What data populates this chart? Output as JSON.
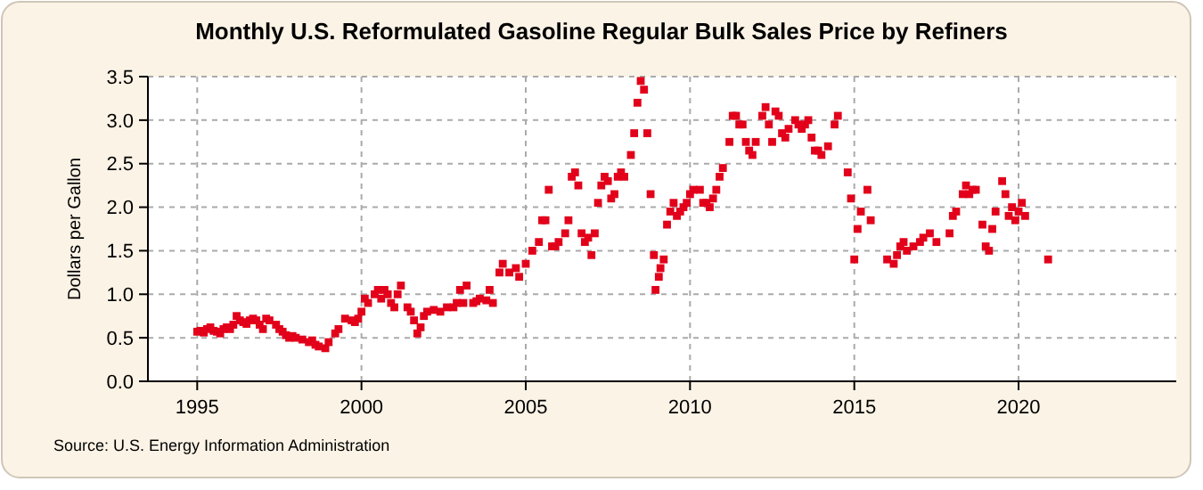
{
  "chart_data": {
    "type": "scatter",
    "title": "Monthly U.S. Reformulated Gasoline Regular Bulk Sales Price by Refiners",
    "ylabel": "Dollars per Gallon",
    "annotations": [
      "Source: U.S. Energy Information Administration"
    ],
    "x": [
      1995.0,
      1995.1,
      1995.2,
      1995.3,
      1995.4,
      1995.5,
      1995.6,
      1995.7,
      1995.8,
      1995.9,
      1996.0,
      1996.1,
      1996.2,
      1996.3,
      1996.4,
      1996.5,
      1996.6,
      1996.7,
      1996.8,
      1996.9,
      1997.0,
      1997.1,
      1997.2,
      1997.4,
      1997.5,
      1997.6,
      1997.7,
      1997.8,
      1997.9,
      1998.0,
      1998.2,
      1998.4,
      1998.5,
      1998.6,
      1998.7,
      1998.9,
      1999.0,
      1999.2,
      1999.3,
      1999.5,
      1999.7,
      1999.8,
      1999.9,
      2000.0,
      2000.1,
      2000.2,
      2000.4,
      2000.5,
      2000.6,
      2000.7,
      2000.8,
      2000.9,
      2001.0,
      2001.1,
      2001.2,
      2001.4,
      2001.5,
      2001.6,
      2001.7,
      2001.8,
      2001.9,
      2002.0,
      2002.2,
      2002.4,
      2002.6,
      2002.8,
      2002.9,
      2003.0,
      2003.1,
      2003.2,
      2003.4,
      2003.5,
      2003.6,
      2003.8,
      2003.9,
      2004.0,
      2004.2,
      2004.3,
      2004.5,
      2004.7,
      2004.8,
      2005.0,
      2005.2,
      2005.4,
      2005.5,
      2005.6,
      2005.7,
      2005.8,
      2005.9,
      2006.0,
      2006.2,
      2006.3,
      2006.4,
      2006.5,
      2006.6,
      2006.7,
      2006.8,
      2006.9,
      2007.0,
      2007.1,
      2007.2,
      2007.3,
      2007.4,
      2007.5,
      2007.6,
      2007.7,
      2007.8,
      2007.9,
      2008.0,
      2008.2,
      2008.3,
      2008.4,
      2008.5,
      2008.6,
      2008.7,
      2008.8,
      2008.9,
      2008.95,
      2009.05,
      2009.1,
      2009.2,
      2009.3,
      2009.4,
      2009.5,
      2009.6,
      2009.7,
      2009.8,
      2009.9,
      2010.0,
      2010.1,
      2010.3,
      2010.4,
      2010.5,
      2010.6,
      2010.7,
      2010.8,
      2010.9,
      2011.0,
      2011.2,
      2011.3,
      2011.4,
      2011.5,
      2011.6,
      2011.7,
      2011.8,
      2011.9,
      2012.0,
      2012.2,
      2012.3,
      2012.4,
      2012.5,
      2012.6,
      2012.7,
      2012.8,
      2012.9,
      2013.0,
      2013.2,
      2013.3,
      2013.4,
      2013.5,
      2013.6,
      2013.7,
      2013.8,
      2013.9,
      2014.0,
      2014.2,
      2014.4,
      2014.5,
      2014.8,
      2014.9,
      2015.0,
      2015.1,
      2015.2,
      2015.4,
      2015.5,
      2016.0,
      2016.2,
      2016.3,
      2016.4,
      2016.5,
      2016.6,
      2016.8,
      2017.0,
      2017.1,
      2017.3,
      2017.5,
      2017.9,
      2018.0,
      2018.1,
      2018.3,
      2018.4,
      2018.5,
      2018.6,
      2018.7,
      2018.9,
      2019.0,
      2019.1,
      2019.2,
      2019.3,
      2019.5,
      2019.6,
      2019.7,
      2019.8,
      2019.9,
      2020.0,
      2020.1,
      2020.2,
      2020.9
    ],
    "series": [
      {
        "color": "#e2001a",
        "values": [
          0.57,
          0.58,
          0.56,
          0.6,
          0.62,
          0.58,
          0.57,
          0.55,
          0.6,
          0.62,
          0.6,
          0.65,
          0.75,
          0.7,
          0.68,
          0.66,
          0.7,
          0.72,
          0.7,
          0.65,
          0.6,
          0.72,
          0.7,
          0.65,
          0.6,
          0.57,
          0.53,
          0.5,
          0.52,
          0.5,
          0.48,
          0.45,
          0.47,
          0.42,
          0.4,
          0.38,
          0.45,
          0.55,
          0.6,
          0.72,
          0.7,
          0.68,
          0.72,
          0.8,
          0.95,
          0.9,
          1.0,
          1.05,
          0.95,
          1.05,
          1.0,
          0.9,
          0.85,
          1.0,
          1.1,
          0.85,
          0.8,
          0.7,
          0.55,
          0.62,
          0.75,
          0.8,
          0.82,
          0.8,
          0.85,
          0.85,
          0.9,
          1.05,
          0.9,
          1.1,
          0.9,
          0.92,
          0.95,
          0.93,
          1.05,
          0.9,
          1.25,
          1.35,
          1.25,
          1.3,
          1.2,
          1.35,
          1.5,
          1.6,
          1.85,
          1.85,
          2.2,
          1.55,
          1.55,
          1.6,
          1.7,
          1.85,
          2.35,
          2.4,
          2.25,
          1.7,
          1.6,
          1.65,
          1.45,
          1.7,
          2.05,
          2.25,
          2.35,
          2.3,
          2.1,
          2.15,
          2.35,
          2.4,
          2.35,
          2.6,
          2.85,
          3.2,
          3.45,
          3.35,
          2.85,
          2.15,
          1.45,
          1.05,
          1.2,
          1.3,
          1.4,
          1.8,
          1.95,
          2.05,
          1.9,
          1.95,
          2.0,
          2.05,
          2.15,
          2.2,
          2.2,
          2.05,
          2.05,
          2.0,
          2.1,
          2.2,
          2.35,
          2.45,
          2.75,
          3.05,
          3.05,
          2.95,
          2.95,
          2.75,
          2.65,
          2.6,
          2.75,
          3.05,
          3.15,
          2.95,
          2.75,
          3.1,
          3.05,
          2.85,
          2.8,
          2.9,
          3.0,
          2.95,
          2.9,
          2.95,
          3.0,
          2.8,
          2.65,
          2.65,
          2.6,
          2.7,
          2.95,
          3.05,
          2.4,
          2.1,
          1.4,
          1.75,
          1.95,
          2.2,
          1.85,
          1.4,
          1.35,
          1.45,
          1.55,
          1.6,
          1.5,
          1.55,
          1.6,
          1.65,
          1.7,
          1.6,
          1.7,
          1.9,
          1.95,
          2.15,
          2.25,
          2.15,
          2.2,
          2.2,
          1.8,
          1.55,
          1.5,
          1.75,
          1.95,
          2.3,
          2.15,
          1.9,
          2.0,
          1.85,
          1.95,
          2.05,
          1.9,
          1.4
        ]
      }
    ],
    "xlim": [
      1993.5,
      2024.8
    ],
    "ylim": [
      0,
      3.5
    ],
    "xticks": [
      1995,
      2000,
      2005,
      2010,
      2015,
      2020
    ],
    "yticks": [
      {
        "value": 0,
        "label": "0.0"
      },
      {
        "value": 0.5,
        "label": "0.5"
      },
      {
        "value": 1,
        "label": "1.0"
      },
      {
        "value": 1.5,
        "label": "1.5"
      },
      {
        "value": 2,
        "label": "2.0"
      },
      {
        "value": 2.5,
        "label": "2.5"
      },
      {
        "value": 3,
        "label": "3.0"
      },
      {
        "value": 3.5,
        "label": "3.5"
      }
    ],
    "grid": true,
    "marker": "square"
  }
}
